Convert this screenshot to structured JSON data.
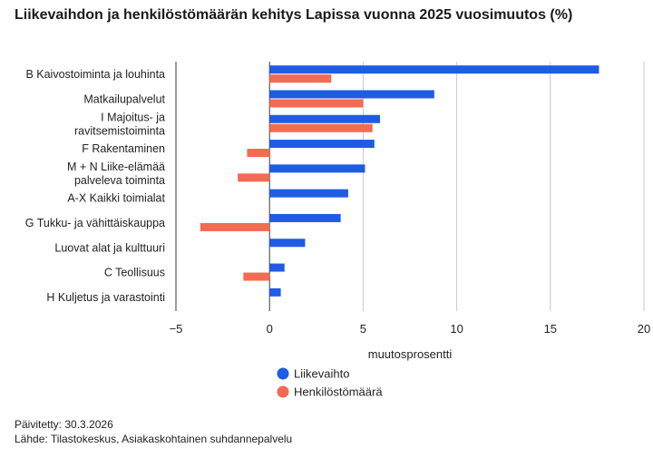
{
  "title": "Liikevaihdon ja henkilöstömäärän kehitys Lapissa vuonna 2025 vuosimuutos (%)",
  "footer": {
    "updated": "Päivitetty: 30.3.2026",
    "source": "Lähde: Tilastokeskus, Asiakaskohtainen suhdannepalvelu"
  },
  "chart_data": {
    "type": "bar",
    "orientation": "horizontal",
    "categories": [
      "B Kaivostoiminta ja louhinta",
      "Matkailupalvelut",
      "I Majoitus- ja ravitsemistoiminta",
      "F Rakentaminen",
      "M + N Liike-elämää palveleva toiminta",
      "A-X Kaikki toimialat",
      "G Tukku- ja vähittäiskauppa",
      "Luovat alat ja kulttuuri",
      "C Teollisuus",
      "H Kuljetus ja varastointi"
    ],
    "category_lines": [
      [
        "B Kaivostoiminta ja louhinta"
      ],
      [
        "Matkailupalvelut"
      ],
      [
        "I Majoitus- ja",
        "ravitsemistoiminta"
      ],
      [
        "F Rakentaminen"
      ],
      [
        "M + N Liike-elämää",
        "palveleva toiminta"
      ],
      [
        "A-X Kaikki toimialat"
      ],
      [
        "G Tukku- ja vähittäiskauppa"
      ],
      [
        "Luovat alat ja kulttuuri"
      ],
      [
        "C Teollisuus"
      ],
      [
        "H Kuljetus ja varastointi"
      ]
    ],
    "series": [
      {
        "name": "Liikevaihto",
        "color": "#1f5ce6",
        "values": [
          17.6,
          8.8,
          5.9,
          5.6,
          5.1,
          4.2,
          3.8,
          1.9,
          0.8,
          0.6
        ]
      },
      {
        "name": "Henkilöstömäärä",
        "color": "#f26b52",
        "values": [
          3.3,
          5.0,
          5.5,
          -1.2,
          -1.7,
          null,
          -3.7,
          null,
          -1.4,
          null
        ]
      }
    ],
    "xlabel": "muutosprosentti",
    "ylabel": "",
    "xlim": [
      -5,
      20
    ],
    "xticks": [
      -5,
      0,
      5,
      10,
      15,
      20
    ],
    "xtick_labels": [
      "−5",
      "0",
      "5",
      "10",
      "15",
      "20"
    ],
    "grid": true,
    "legend_position": "bottom"
  }
}
